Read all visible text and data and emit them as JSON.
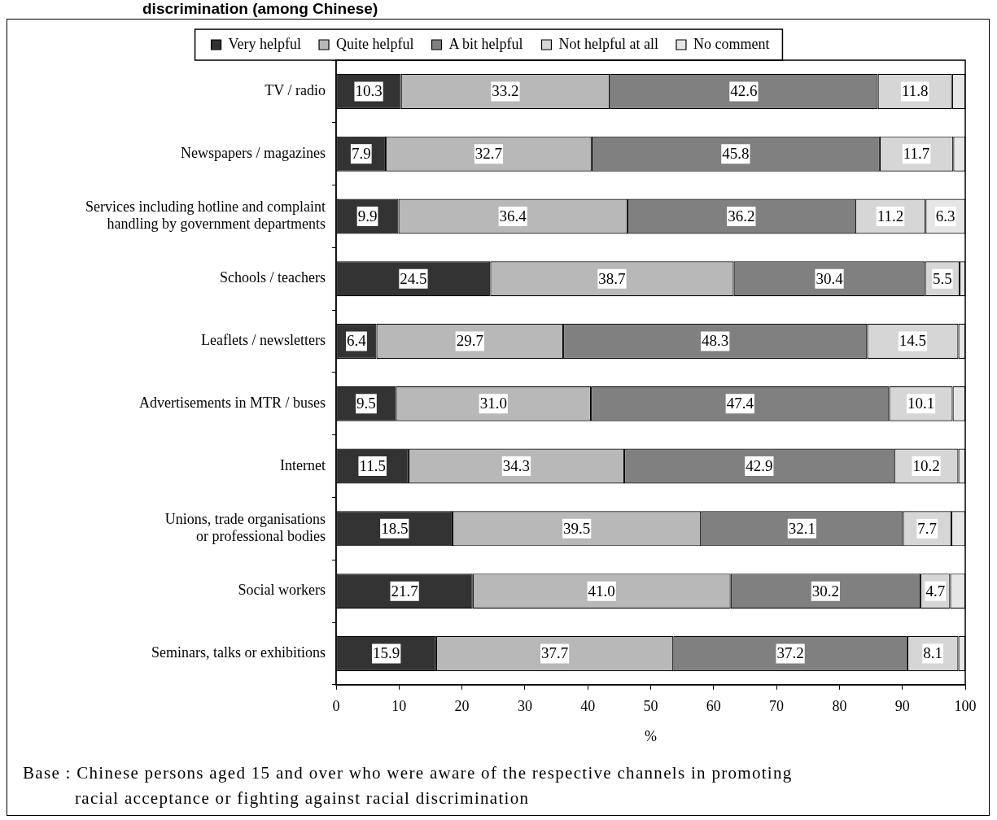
{
  "chart_data": {
    "type": "bar",
    "orientation": "horizontal",
    "stacked": true,
    "title": "discrimination (among Chinese)",
    "xlabel": "%",
    "categories": [
      "TV / radio",
      "Newspapers / magazines",
      "Services including hotline and complaint handling by government departments",
      "Schools / teachers",
      "Leaflets / newsletters",
      "Advertisements in MTR / buses",
      "Internet",
      "Unions, trade organisations or professional bodies",
      "Social workers",
      "Seminars, talks or exhibitions"
    ],
    "series": [
      {
        "name": "Very helpful",
        "color": "#333333",
        "values": [
          10.3,
          7.9,
          9.9,
          24.5,
          6.4,
          9.5,
          11.5,
          18.5,
          21.7,
          15.9
        ],
        "value_labels": [
          "10.3",
          "7.9",
          "9.9",
          "24.5",
          "6.4",
          "9.5",
          "11.5",
          "18.5",
          "21.7",
          "15.9"
        ]
      },
      {
        "name": "Quite helpful",
        "color": "#b8b8b8",
        "values": [
          33.2,
          32.7,
          36.4,
          38.7,
          29.7,
          31.0,
          34.3,
          39.5,
          41.0,
          37.7
        ],
        "value_labels": [
          "33.2",
          "32.7",
          "36.4",
          "38.7",
          "29.7",
          "31.0",
          "34.3",
          "39.5",
          "41.0",
          "37.7"
        ]
      },
      {
        "name": "A bit helpful",
        "color": "#808080",
        "values": [
          42.6,
          45.8,
          36.2,
          30.4,
          48.3,
          47.4,
          42.9,
          32.1,
          30.2,
          37.2
        ],
        "value_labels": [
          "42.6",
          "45.8",
          "36.2",
          "30.4",
          "48.3",
          "47.4",
          "42.9",
          "32.1",
          "30.2",
          "37.2"
        ]
      },
      {
        "name": "Not helpful at all",
        "color": "#d6d6d6",
        "values": [
          11.8,
          11.7,
          11.2,
          5.5,
          14.5,
          10.1,
          10.2,
          7.7,
          4.7,
          8.1
        ],
        "value_labels": [
          "11.8",
          "11.7",
          "11.2",
          "5.5",
          "14.5",
          "10.1",
          "10.2",
          "7.7",
          "4.7",
          "8.1"
        ]
      },
      {
        "name": "No comment",
        "color": "#e6e6e6",
        "values": [
          2.1,
          1.9,
          6.3,
          0.9,
          1.1,
          2.0,
          1.1,
          2.2,
          2.4,
          1.1
        ],
        "value_labels": [
          null,
          null,
          "6.3",
          null,
          null,
          null,
          null,
          null,
          null,
          null
        ]
      }
    ],
    "xlim": [
      0,
      100
    ],
    "xticks": [
      0,
      10,
      20,
      30,
      40,
      50,
      60,
      70,
      80,
      90,
      100
    ],
    "grid": false,
    "legend": "top",
    "annotations": [
      "Base : Chinese persons aged 15 and over who were aware of the respective channels in promoting racial acceptance or fighting against racial discrimination"
    ]
  }
}
